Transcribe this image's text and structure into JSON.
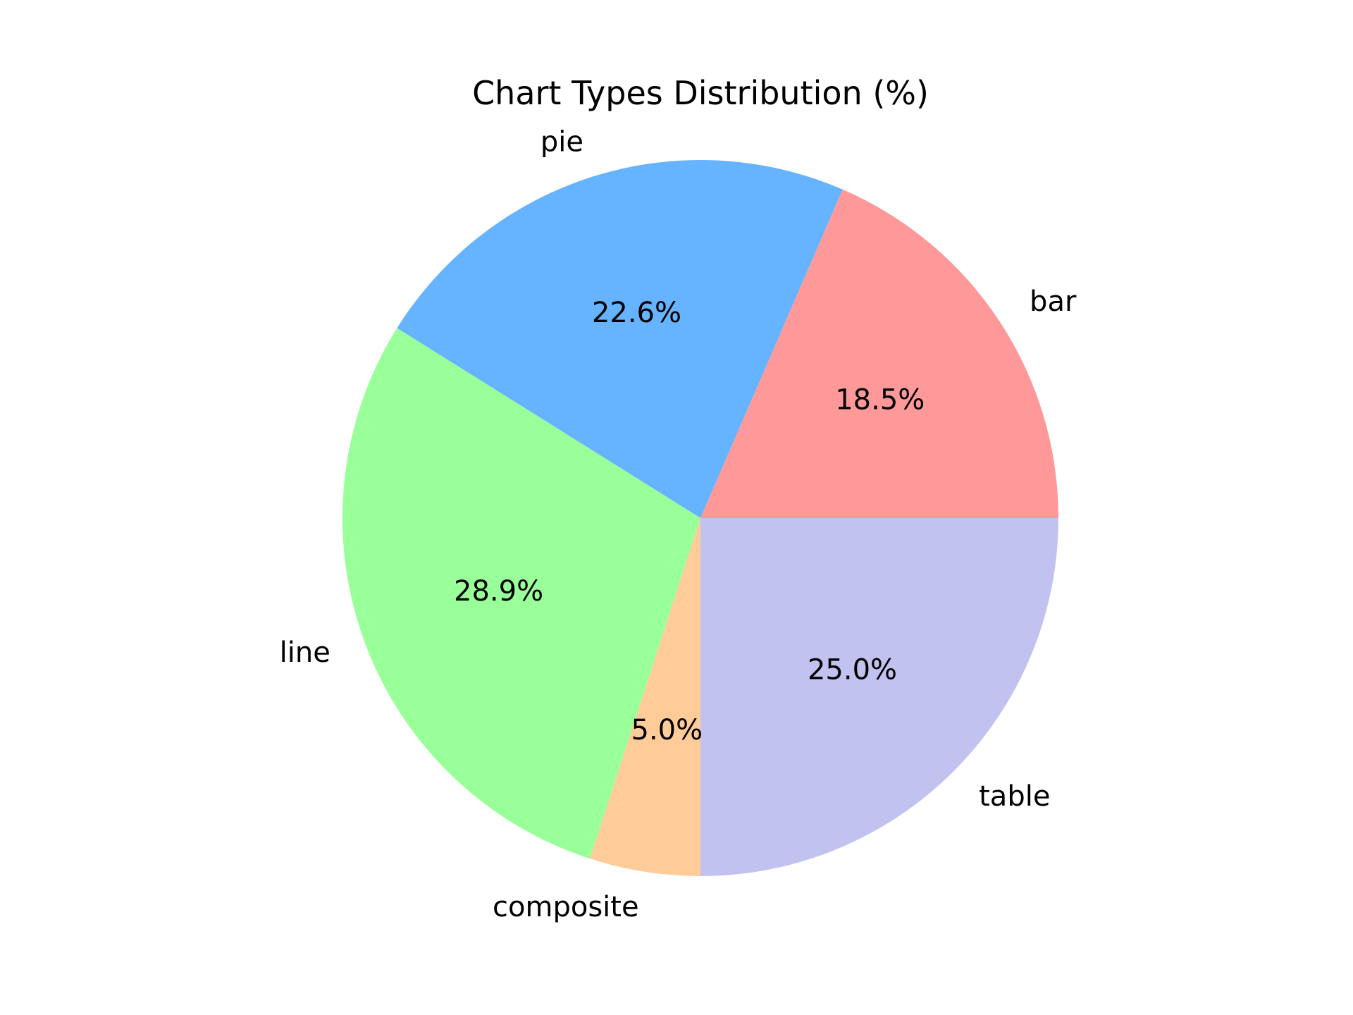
{
  "chart_data": {
    "type": "pie",
    "title": "Chart Types Distribution (%)",
    "start_angle_deg": 0,
    "direction": "counterclockwise",
    "slices": [
      {
        "label": "bar",
        "value": 18.5,
        "pct_label": "18.5%",
        "color": "#ff9999"
      },
      {
        "label": "pie",
        "value": 22.6,
        "pct_label": "22.6%",
        "color": "#66b3ff"
      },
      {
        "label": "line",
        "value": 28.9,
        "pct_label": "28.9%",
        "color": "#99ff99"
      },
      {
        "label": "composite",
        "value": 5.0,
        "pct_label": "5.0%",
        "color": "#ffcc99"
      },
      {
        "label": "table",
        "value": 25.0,
        "pct_label": "25.0%",
        "color": "#c2c2f0"
      }
    ]
  }
}
